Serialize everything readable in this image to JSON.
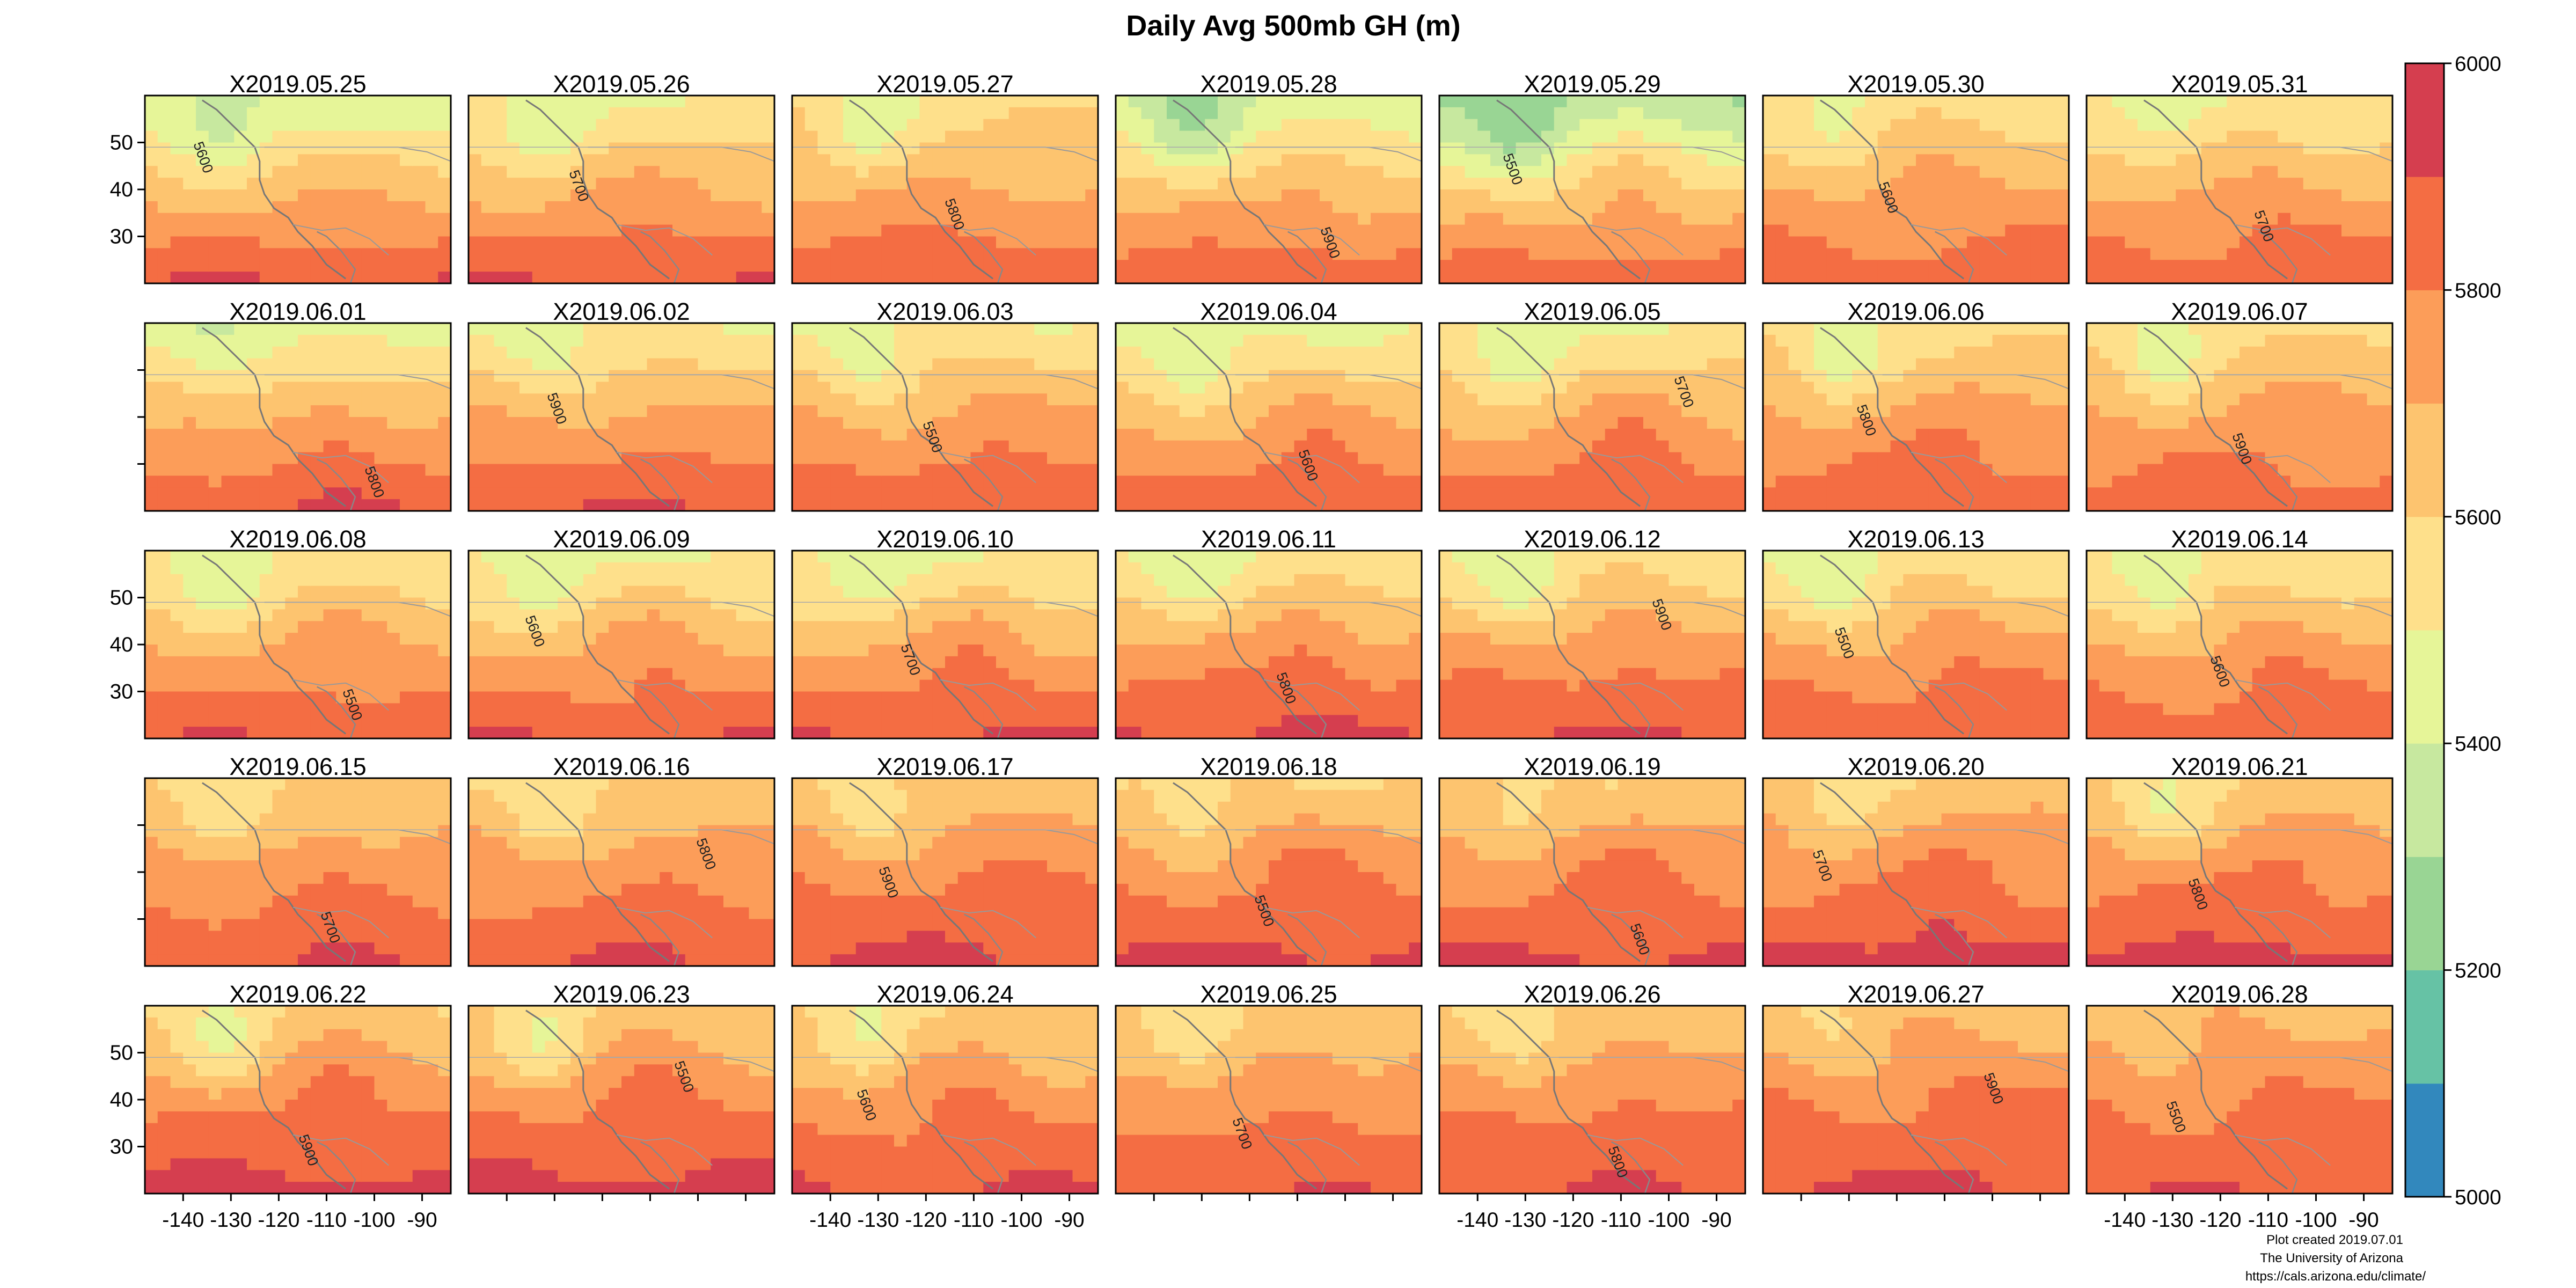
{
  "title": "Daily Avg 500mb GH (m)",
  "panel_titles": [
    "X2019.05.25",
    "X2019.05.26",
    "X2019.05.27",
    "X2019.05.28",
    "X2019.05.29",
    "X2019.05.30",
    "X2019.05.31",
    "X2019.06.01",
    "X2019.06.02",
    "X2019.06.03",
    "X2019.06.04",
    "X2019.06.05",
    "X2019.06.06",
    "X2019.06.07",
    "X2019.06.08",
    "X2019.06.09",
    "X2019.06.10",
    "X2019.06.11",
    "X2019.06.12",
    "X2019.06.13",
    "X2019.06.14",
    "X2019.06.15",
    "X2019.06.16",
    "X2019.06.17",
    "X2019.06.18",
    "X2019.06.19",
    "X2019.06.20",
    "X2019.06.21",
    "X2019.06.22",
    "X2019.06.23",
    "X2019.06.24",
    "X2019.06.25",
    "X2019.06.26",
    "X2019.06.27",
    "X2019.06.28"
  ],
  "lon_ticks": [
    -140,
    -130,
    -120,
    -110,
    -100,
    -90
  ],
  "lat_ticks": [
    50,
    40,
    30
  ],
  "lon_range": [
    -148,
    -84
  ],
  "lat_range": [
    20,
    60
  ],
  "colorbar": {
    "min": 5000,
    "max": 6000,
    "step": 100,
    "tick_labels": [
      6000,
      5800,
      5600,
      5400,
      5200,
      5000
    ],
    "colors": [
      "#3288bd",
      "#66c2a5",
      "#99d594",
      "#c7e89f",
      "#e6f598",
      "#fee08b",
      "#fdc46f",
      "#fc9d59",
      "#f46d43",
      "#d53e4f"
    ]
  },
  "panel_levels": [
    {
      "ridge": 5680,
      "north": 5420,
      "south": 5900
    },
    {
      "ridge": 5720,
      "north": 5500,
      "south": 5890
    },
    {
      "ridge": 5700,
      "north": 5550,
      "south": 5880
    },
    {
      "ridge": 5720,
      "north": 5400,
      "south": 5880
    },
    {
      "ridge": 5720,
      "north": 5300,
      "south": 5870
    },
    {
      "ridge": 5750,
      "north": 5550,
      "south": 5860
    },
    {
      "ridge": 5760,
      "north": 5500,
      "south": 5880
    },
    {
      "ridge": 5760,
      "north": 5450,
      "south": 5900
    },
    {
      "ridge": 5760,
      "north": 5500,
      "south": 5900
    },
    {
      "ridge": 5760,
      "north": 5520,
      "south": 5880
    },
    {
      "ridge": 5750,
      "north": 5480,
      "south": 5880
    },
    {
      "ridge": 5780,
      "north": 5500,
      "south": 5880
    },
    {
      "ridge": 5780,
      "north": 5550,
      "south": 5880
    },
    {
      "ridge": 5770,
      "north": 5560,
      "south": 5860
    },
    {
      "ridge": 5760,
      "north": 5500,
      "south": 5890
    },
    {
      "ridge": 5760,
      "north": 5480,
      "south": 5890
    },
    {
      "ridge": 5800,
      "north": 5480,
      "south": 5900
    },
    {
      "ridge": 5830,
      "north": 5500,
      "south": 5920
    },
    {
      "ridge": 5810,
      "north": 5520,
      "south": 5910
    },
    {
      "ridge": 5800,
      "north": 5520,
      "south": 5890
    },
    {
      "ridge": 5780,
      "north": 5520,
      "south": 5880
    },
    {
      "ridge": 5800,
      "north": 5600,
      "south": 5900
    },
    {
      "ridge": 5810,
      "north": 5600,
      "south": 5900
    },
    {
      "ridge": 5820,
      "north": 5620,
      "south": 5920
    },
    {
      "ridge": 5840,
      "north": 5600,
      "south": 5930
    },
    {
      "ridge": 5840,
      "north": 5620,
      "south": 5920
    },
    {
      "ridge": 5850,
      "north": 5620,
      "south": 5930
    },
    {
      "ridge": 5840,
      "north": 5600,
      "south": 5930
    },
    {
      "ridge": 5870,
      "north": 5600,
      "south": 5930
    },
    {
      "ridge": 5870,
      "north": 5620,
      "south": 5930
    },
    {
      "ridge": 5840,
      "north": 5600,
      "south": 5900
    },
    {
      "ridge": 5820,
      "north": 5620,
      "south": 5880
    },
    {
      "ridge": 5840,
      "north": 5620,
      "south": 5900
    },
    {
      "ridge": 5850,
      "north": 5650,
      "south": 5920
    },
    {
      "ridge": 5830,
      "north": 5680,
      "south": 5900
    }
  ],
  "contour_labels": [
    "5500",
    "5600",
    "5700",
    "5800",
    "5900"
  ],
  "credits": {
    "line1": "Plot created 2019.07.01",
    "line2": "The University of Arizona",
    "line3": "https://cals.arizona.edu/climate/"
  }
}
